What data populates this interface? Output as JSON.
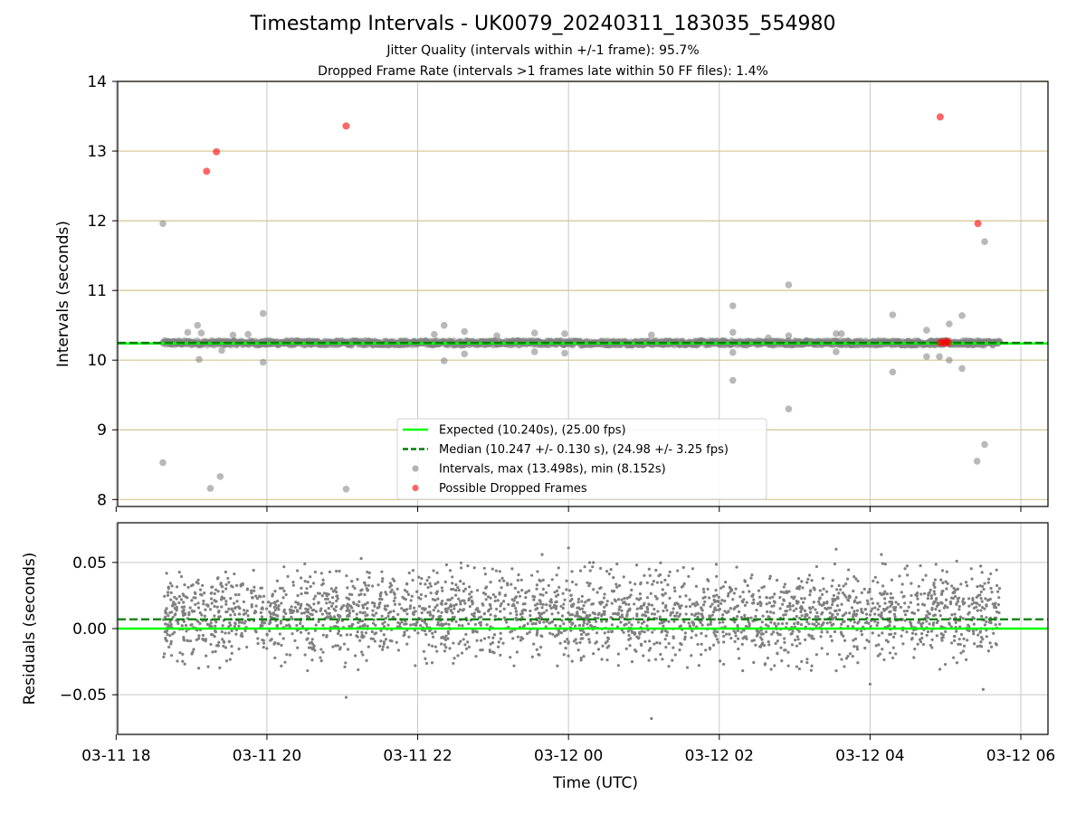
{
  "header": {
    "title": "Timestamp Intervals - UK0079_20240311_183035_554980",
    "subtitle1": "Jitter Quality (intervals within +/-1 frame): 95.7%",
    "subtitle2": "Dropped Frame Rate (intervals >1 frames late within 50 FF files): 1.4%"
  },
  "chart_data": [
    {
      "type": "scatter",
      "ylabel": "Intervals (seconds)",
      "ylim": [
        7.9,
        14.0
      ],
      "yticks": [
        "8",
        "9",
        "10",
        "11",
        "12",
        "13",
        "14"
      ],
      "xlim_hours": [
        18.02,
        30.36
      ],
      "grid": true,
      "legend_position": "lower-center",
      "expected_line": {
        "value": 10.24,
        "color": "#00ff00",
        "label": "Expected (10.240s), (25.00 fps)"
      },
      "median_line": {
        "value": 10.247,
        "color": "#007f00",
        "label": "Median (10.247 +/- 0.130 s), (24.98 +/- 3.25 fps)"
      },
      "interval_series": {
        "name": "Intervals, max (13.498s), min (8.152s)",
        "color": "#808080",
        "band_center": 10.247,
        "band_halfwidth": 0.035,
        "x_range_hours": [
          18.62,
          29.72
        ],
        "outliers": [
          {
            "x": 18.62,
            "y": 11.96
          },
          {
            "x": 18.62,
            "y": 8.53
          },
          {
            "x": 18.95,
            "y": 10.4
          },
          {
            "x": 19.08,
            "y": 10.5
          },
          {
            "x": 19.13,
            "y": 10.39
          },
          {
            "x": 19.1,
            "y": 10.01
          },
          {
            "x": 19.25,
            "y": 8.16
          },
          {
            "x": 19.38,
            "y": 8.33
          },
          {
            "x": 19.4,
            "y": 10.14
          },
          {
            "x": 19.55,
            "y": 10.36
          },
          {
            "x": 19.75,
            "y": 10.37
          },
          {
            "x": 19.95,
            "y": 10.67
          },
          {
            "x": 19.95,
            "y": 9.97
          },
          {
            "x": 21.05,
            "y": 8.15
          },
          {
            "x": 22.22,
            "y": 10.37
          },
          {
            "x": 22.35,
            "y": 10.5
          },
          {
            "x": 22.35,
            "y": 9.99
          },
          {
            "x": 22.62,
            "y": 10.41
          },
          {
            "x": 22.62,
            "y": 10.09
          },
          {
            "x": 23.05,
            "y": 10.35
          },
          {
            "x": 23.55,
            "y": 10.39
          },
          {
            "x": 23.55,
            "y": 10.12
          },
          {
            "x": 23.95,
            "y": 10.38
          },
          {
            "x": 23.95,
            "y": 10.1
          },
          {
            "x": 25.1,
            "y": 10.36
          },
          {
            "x": 26.18,
            "y": 10.78
          },
          {
            "x": 26.18,
            "y": 10.4
          },
          {
            "x": 26.18,
            "y": 9.71
          },
          {
            "x": 26.18,
            "y": 10.11
          },
          {
            "x": 26.65,
            "y": 10.32
          },
          {
            "x": 26.92,
            "y": 11.08
          },
          {
            "x": 26.92,
            "y": 9.3
          },
          {
            "x": 26.92,
            "y": 10.35
          },
          {
            "x": 27.55,
            "y": 10.38
          },
          {
            "x": 27.62,
            "y": 10.38
          },
          {
            "x": 27.55,
            "y": 10.12
          },
          {
            "x": 28.3,
            "y": 10.65
          },
          {
            "x": 28.3,
            "y": 9.83
          },
          {
            "x": 28.75,
            "y": 10.43
          },
          {
            "x": 28.75,
            "y": 10.05
          },
          {
            "x": 28.92,
            "y": 10.05
          },
          {
            "x": 29.05,
            "y": 10.52
          },
          {
            "x": 29.05,
            "y": 10.0
          },
          {
            "x": 29.22,
            "y": 10.64
          },
          {
            "x": 29.22,
            "y": 9.88
          },
          {
            "x": 29.42,
            "y": 8.55
          },
          {
            "x": 29.52,
            "y": 11.7
          },
          {
            "x": 29.52,
            "y": 8.79
          }
        ]
      },
      "dropped_series": {
        "name": "Possible Dropped Frames",
        "color": "#ff0000",
        "points": [
          {
            "x": 19.2,
            "y": 12.71
          },
          {
            "x": 19.33,
            "y": 12.99
          },
          {
            "x": 21.05,
            "y": 13.36
          },
          {
            "x": 28.93,
            "y": 13.49
          },
          {
            "x": 29.43,
            "y": 11.96
          },
          {
            "x": 28.93,
            "y": 10.25
          },
          {
            "x": 28.96,
            "y": 10.26
          },
          {
            "x": 28.99,
            "y": 10.24
          },
          {
            "x": 29.02,
            "y": 10.27
          },
          {
            "x": 29.04,
            "y": 10.25
          }
        ]
      }
    },
    {
      "type": "scatter",
      "xlabel": "Time (UTC)",
      "ylabel": "Residuals (seconds)",
      "ylim": [
        -0.08,
        0.08
      ],
      "yticks": [
        "−0.05",
        "0.00",
        "0.05"
      ],
      "xtick_labels": [
        "03-11 18",
        "03-11 20",
        "03-11 22",
        "03-12 00",
        "03-12 02",
        "03-12 04",
        "03-12 06"
      ],
      "xtick_hours": [
        18,
        20,
        22,
        24,
        26,
        28,
        30
      ],
      "grid": true,
      "zero_line": {
        "value": 0.0,
        "color": "#00ff00"
      },
      "median_line": {
        "value": 0.007,
        "color": "#007f00"
      },
      "residual_series": {
        "color": "#808080",
        "x_range_hours": [
          18.62,
          29.72
        ],
        "typical_range": [
          -0.025,
          0.045
        ],
        "outliers": [
          {
            "x": 21.05,
            "y": -0.052
          },
          {
            "x": 25.1,
            "y": -0.068
          },
          {
            "x": 28.0,
            "y": -0.042
          },
          {
            "x": 29.5,
            "y": -0.046
          },
          {
            "x": 24.0,
            "y": 0.061
          },
          {
            "x": 27.55,
            "y": 0.06
          },
          {
            "x": 23.65,
            "y": 0.056
          },
          {
            "x": 28.15,
            "y": 0.056
          },
          {
            "x": 21.25,
            "y": 0.053
          },
          {
            "x": 29.15,
            "y": 0.051
          }
        ]
      }
    }
  ]
}
